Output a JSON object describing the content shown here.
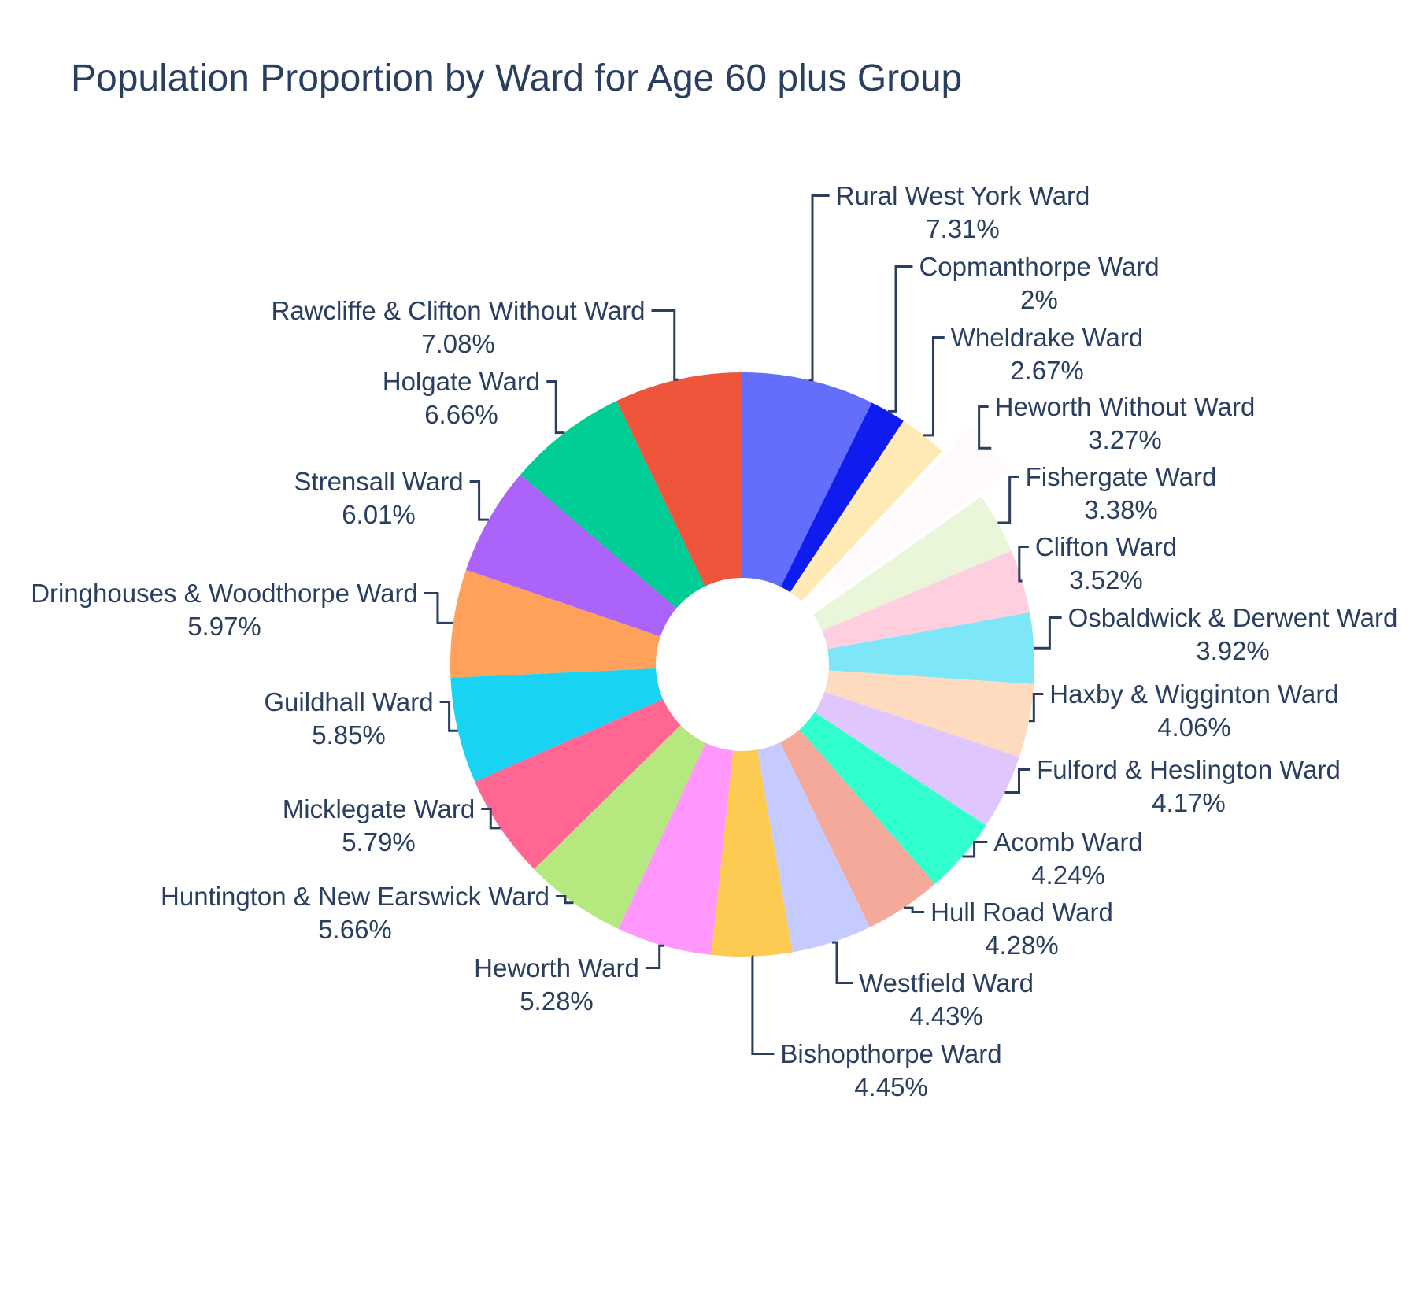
{
  "chart_data": {
    "type": "pie",
    "title": "Population Proportion by Ward for Age 60 plus Group",
    "hole": true,
    "pulled_slice": "Heworth Without Ward",
    "slices": [
      {
        "label": "Rural West York Ward",
        "percent_text": "7.31%",
        "value": 7.31,
        "color": "#636efa"
      },
      {
        "label": "Copmanthorpe Ward",
        "percent_text": "2%",
        "value": 2.0,
        "color": "#0f1cf0"
      },
      {
        "label": "Wheldrake Ward",
        "percent_text": "2.67%",
        "value": 2.67,
        "color": "#ffe9b5"
      },
      {
        "label": "Heworth Without Ward",
        "percent_text": "3.27%",
        "value": 3.27,
        "color": "#fffbfd"
      },
      {
        "label": "Fishergate Ward",
        "percent_text": "3.38%",
        "value": 3.38,
        "color": "#e9f6d9"
      },
      {
        "label": "Clifton Ward",
        "percent_text": "3.52%",
        "value": 3.52,
        "color": "#ffcfe0"
      },
      {
        "label": "Osbaldwick & Derwent Ward",
        "percent_text": "3.92%",
        "value": 3.92,
        "color": "#7de6f7"
      },
      {
        "label": "Haxby & Wigginton Ward",
        "percent_text": "4.06%",
        "value": 4.06,
        "color": "#fedbbf"
      },
      {
        "label": "Fulford & Heslington Ward",
        "percent_text": "4.17%",
        "value": 4.17,
        "color": "#dfc7fd"
      },
      {
        "label": "Acomb Ward",
        "percent_text": "4.24%",
        "value": 4.24,
        "color": "#31ffcd"
      },
      {
        "label": "Hull Road Ward",
        "percent_text": "4.28%",
        "value": 4.28,
        "color": "#f5a99b"
      },
      {
        "label": "Westfield Ward",
        "percent_text": "4.43%",
        "value": 4.43,
        "color": "#c6cbff"
      },
      {
        "label": "Bishopthorpe Ward",
        "percent_text": "4.45%",
        "value": 4.45,
        "color": "#fecb52"
      },
      {
        "label": "Heworth Ward",
        "percent_text": "5.28%",
        "value": 5.28,
        "color": "#ff97ff"
      },
      {
        "label": "Huntington & New Earswick Ward",
        "percent_text": "5.66%",
        "value": 5.66,
        "color": "#b6e880"
      },
      {
        "label": "Micklegate Ward",
        "percent_text": "5.79%",
        "value": 5.79,
        "color": "#ff6692"
      },
      {
        "label": "Guildhall Ward",
        "percent_text": "5.85%",
        "value": 5.85,
        "color": "#19d3f3"
      },
      {
        "label": "Dringhouses & Woodthorpe Ward",
        "percent_text": "5.97%",
        "value": 5.97,
        "color": "#ffa15a"
      },
      {
        "label": "Strensall Ward",
        "percent_text": "6.01%",
        "value": 6.01,
        "color": "#ab63fa"
      },
      {
        "label": "Holgate Ward",
        "percent_text": "6.66%",
        "value": 6.66,
        "color": "#00cc96"
      },
      {
        "label": "Rawcliffe & Clifton Without Ward",
        "percent_text": "7.08%",
        "value": 7.08,
        "color": "#ef553b"
      }
    ]
  }
}
